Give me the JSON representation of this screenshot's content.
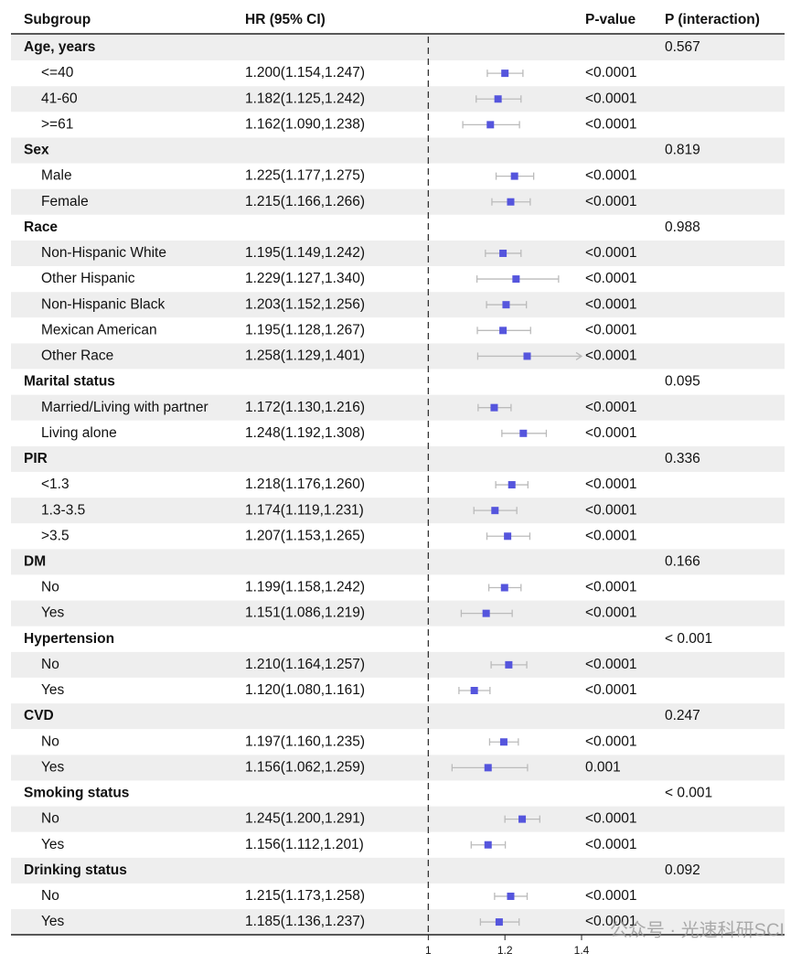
{
  "chart_data": {
    "type": "forest",
    "headers": {
      "subgroup": "Subgroup",
      "ci": "HR (95% CI)",
      "p": "P-value",
      "p_interaction": "P (interaction)"
    },
    "xlim": [
      0.98,
      1.4
    ],
    "xticks": [
      1,
      1.2,
      1.4
    ],
    "refline": 1,
    "marker_color": "#5555dd",
    "ci_color": "#bbbbbb",
    "groups": [
      {
        "name": "Age, years",
        "p_interaction": "0.567",
        "rows": [
          {
            "label": "<=40",
            "ci_text": "1.200(1.154,1.247)",
            "hr": 1.2,
            "lo": 1.154,
            "hi": 1.247,
            "p": "<0.0001"
          },
          {
            "label": "41-60",
            "ci_text": "1.182(1.125,1.242)",
            "hr": 1.182,
            "lo": 1.125,
            "hi": 1.242,
            "p": "<0.0001"
          },
          {
            "label": ">=61",
            "ci_text": "1.162(1.090,1.238)",
            "hr": 1.162,
            "lo": 1.09,
            "hi": 1.238,
            "p": "<0.0001"
          }
        ]
      },
      {
        "name": "Sex",
        "p_interaction": "0.819",
        "rows": [
          {
            "label": "Male",
            "ci_text": "1.225(1.177,1.275)",
            "hr": 1.225,
            "lo": 1.177,
            "hi": 1.275,
            "p": "<0.0001"
          },
          {
            "label": "Female",
            "ci_text": "1.215(1.166,1.266)",
            "hr": 1.215,
            "lo": 1.166,
            "hi": 1.266,
            "p": "<0.0001"
          }
        ]
      },
      {
        "name": "Race",
        "p_interaction": "0.988",
        "rows": [
          {
            "label": "Non-Hispanic White",
            "ci_text": "1.195(1.149,1.242)",
            "hr": 1.195,
            "lo": 1.149,
            "hi": 1.242,
            "p": "<0.0001"
          },
          {
            "label": "Other Hispanic",
            "ci_text": "1.229(1.127,1.340)",
            "hr": 1.229,
            "lo": 1.127,
            "hi": 1.34,
            "p": "<0.0001"
          },
          {
            "label": "Non-Hispanic Black",
            "ci_text": "1.203(1.152,1.256)",
            "hr": 1.203,
            "lo": 1.152,
            "hi": 1.256,
            "p": "<0.0001"
          },
          {
            "label": "Mexican American",
            "ci_text": "1.195(1.128,1.267)",
            "hr": 1.195,
            "lo": 1.128,
            "hi": 1.267,
            "p": "<0.0001"
          },
          {
            "label": "Other Race",
            "ci_text": "1.258(1.129,1.401)",
            "hr": 1.258,
            "lo": 1.129,
            "hi": 1.401,
            "p": "<0.0001"
          }
        ]
      },
      {
        "name": "Marital status",
        "p_interaction": "0.095",
        "rows": [
          {
            "label": "Married/Living with partner",
            "ci_text": "1.172(1.130,1.216)",
            "hr": 1.172,
            "lo": 1.13,
            "hi": 1.216,
            "p": "<0.0001"
          },
          {
            "label": "Living alone",
            "ci_text": "1.248(1.192,1.308)",
            "hr": 1.248,
            "lo": 1.192,
            "hi": 1.308,
            "p": "<0.0001"
          }
        ]
      },
      {
        "name": "PIR",
        "p_interaction": "0.336",
        "rows": [
          {
            "label": "<1.3",
            "ci_text": "1.218(1.176,1.260)",
            "hr": 1.218,
            "lo": 1.176,
            "hi": 1.26,
            "p": "<0.0001"
          },
          {
            "label": "1.3-3.5",
            "ci_text": "1.174(1.119,1.231)",
            "hr": 1.174,
            "lo": 1.119,
            "hi": 1.231,
            "p": "<0.0001"
          },
          {
            "label": ">3.5",
            "ci_text": "1.207(1.153,1.265)",
            "hr": 1.207,
            "lo": 1.153,
            "hi": 1.265,
            "p": "<0.0001"
          }
        ]
      },
      {
        "name": "DM",
        "p_interaction": "0.166",
        "rows": [
          {
            "label": "No",
            "ci_text": "1.199(1.158,1.242)",
            "hr": 1.199,
            "lo": 1.158,
            "hi": 1.242,
            "p": "<0.0001"
          },
          {
            "label": "Yes",
            "ci_text": "1.151(1.086,1.219)",
            "hr": 1.151,
            "lo": 1.086,
            "hi": 1.219,
            "p": "<0.0001"
          }
        ]
      },
      {
        "name": "Hypertension",
        "p_interaction": "< 0.001",
        "rows": [
          {
            "label": "No",
            "ci_text": "1.210(1.164,1.257)",
            "hr": 1.21,
            "lo": 1.164,
            "hi": 1.257,
            "p": "<0.0001"
          },
          {
            "label": "Yes",
            "ci_text": "1.120(1.080,1.161)",
            "hr": 1.12,
            "lo": 1.08,
            "hi": 1.161,
            "p": "<0.0001"
          }
        ]
      },
      {
        "name": "CVD",
        "p_interaction": "0.247",
        "rows": [
          {
            "label": "No",
            "ci_text": "1.197(1.160,1.235)",
            "hr": 1.197,
            "lo": 1.16,
            "hi": 1.235,
            "p": "<0.0001"
          },
          {
            "label": "Yes",
            "ci_text": "1.156(1.062,1.259)",
            "hr": 1.156,
            "lo": 1.062,
            "hi": 1.259,
            "p": "0.001"
          }
        ]
      },
      {
        "name": "Smoking status",
        "p_interaction": "< 0.001",
        "rows": [
          {
            "label": "No",
            "ci_text": "1.245(1.200,1.291)",
            "hr": 1.245,
            "lo": 1.2,
            "hi": 1.291,
            "p": "<0.0001"
          },
          {
            "label": "Yes",
            "ci_text": "1.156(1.112,1.201)",
            "hr": 1.156,
            "lo": 1.112,
            "hi": 1.201,
            "p": "<0.0001"
          }
        ]
      },
      {
        "name": "Drinking status",
        "p_interaction": "0.092",
        "rows": [
          {
            "label": "No",
            "ci_text": "1.215(1.173,1.258)",
            "hr": 1.215,
            "lo": 1.173,
            "hi": 1.258,
            "p": "<0.0001"
          },
          {
            "label": "Yes",
            "ci_text": "1.185(1.136,1.237)",
            "hr": 1.185,
            "lo": 1.136,
            "hi": 1.237,
            "p": "<0.0001"
          }
        ]
      }
    ],
    "watermark": "公众号 · 光速科研SCI"
  }
}
